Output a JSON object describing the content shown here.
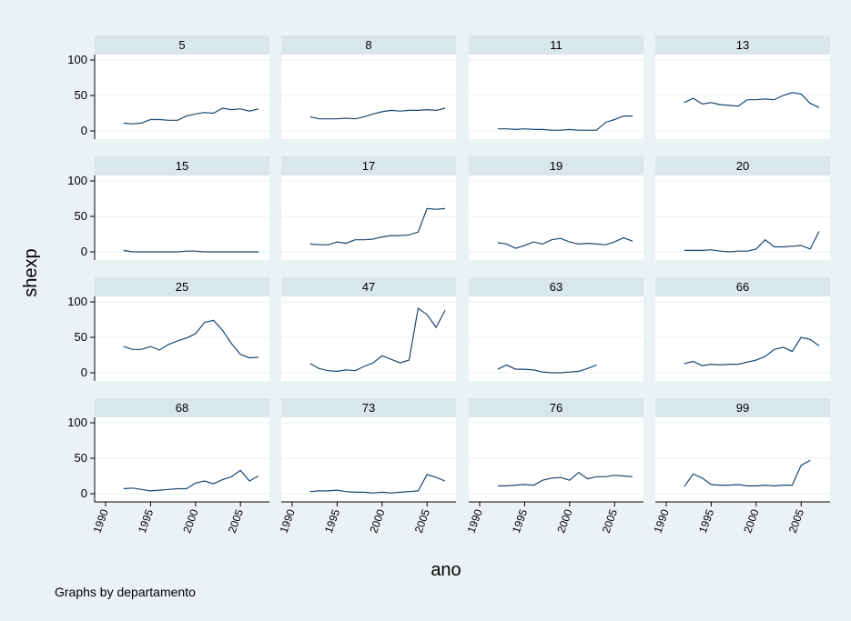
{
  "chart_data": {
    "type": "line",
    "layout": "small-multiples",
    "rows": 4,
    "cols": 4,
    "xlabel": "ano",
    "ylabel": "shexp",
    "note": "Graphs by departamento",
    "xlim": [
      1990,
      2007
    ],
    "ylim": [
      0,
      100
    ],
    "xticks": [
      1990,
      1995,
      2000,
      2005
    ],
    "yticks": [
      0,
      50,
      100
    ],
    "grid": true,
    "line_color": "#1a476f",
    "panels": [
      {
        "name": "5",
        "x": [
          1992,
          1993,
          1994,
          1995,
          1996,
          1997,
          1998,
          1999,
          2000,
          2001,
          2002,
          2003,
          2004,
          2005,
          2006,
          2007
        ],
        "y": [
          11,
          10,
          11,
          16,
          16,
          15,
          15,
          21,
          24,
          26,
          25,
          32,
          30,
          31,
          28,
          31
        ]
      },
      {
        "name": "8",
        "x": [
          1992,
          1993,
          1994,
          1995,
          1996,
          1997,
          1998,
          1999,
          2000,
          2001,
          2002,
          2003,
          2004,
          2005,
          2006,
          2007
        ],
        "y": [
          20,
          17,
          17,
          17,
          18,
          17,
          20,
          24,
          27,
          29,
          28,
          29,
          29,
          30,
          29,
          32
        ]
      },
      {
        "name": "11",
        "x": [
          1992,
          1993,
          1994,
          1995,
          1996,
          1997,
          1998,
          1999,
          2000,
          2001,
          2002,
          2003,
          2004,
          2005,
          2006,
          2007
        ],
        "y": [
          3,
          3,
          2,
          3,
          2,
          2,
          1,
          1,
          2,
          1,
          1,
          1,
          12,
          16,
          21,
          21
        ]
      },
      {
        "name": "13",
        "x": [
          1992,
          1993,
          1994,
          1995,
          1996,
          1997,
          1998,
          1999,
          2000,
          2001,
          2002,
          2003,
          2004,
          2005,
          2006,
          2007
        ],
        "y": [
          40,
          46,
          38,
          40,
          37,
          36,
          35,
          44,
          44,
          45,
          44,
          50,
          54,
          52,
          39,
          33
        ]
      },
      {
        "name": "15",
        "x": [
          1992,
          1993,
          1994,
          1995,
          1996,
          1997,
          1998,
          1999,
          2000,
          2001,
          2002,
          2003,
          2004,
          2005,
          2006,
          2007
        ],
        "y": [
          2,
          0,
          0,
          0,
          0,
          0,
          0,
          1,
          1,
          0,
          0,
          0,
          0,
          0,
          0,
          0
        ]
      },
      {
        "name": "17",
        "x": [
          1992,
          1993,
          1994,
          1995,
          1996,
          1997,
          1998,
          1999,
          2000,
          2001,
          2002,
          2003,
          2004,
          2005,
          2006,
          2007
        ],
        "y": [
          11,
          10,
          10,
          14,
          12,
          17,
          17,
          18,
          21,
          23,
          23,
          24,
          28,
          61,
          60,
          61
        ]
      },
      {
        "name": "19",
        "x": [
          1992,
          1993,
          1994,
          1995,
          1996,
          1997,
          1998,
          1999,
          2000,
          2001,
          2002,
          2003,
          2004,
          2005,
          2006,
          2007
        ],
        "y": [
          13,
          11,
          5,
          9,
          14,
          11,
          17,
          19,
          14,
          11,
          12,
          11,
          10,
          14,
          20,
          15
        ]
      },
      {
        "name": "20",
        "x": [
          1992,
          1993,
          1994,
          1995,
          1996,
          1997,
          1998,
          1999,
          2000,
          2001,
          2002,
          2003,
          2004,
          2005,
          2006,
          2007
        ],
        "y": [
          2,
          2,
          2,
          3,
          1,
          0,
          1,
          1,
          4,
          17,
          7,
          7,
          8,
          9,
          4,
          29
        ]
      },
      {
        "name": "25",
        "x": [
          1992,
          1993,
          1994,
          1995,
          1996,
          1997,
          1998,
          1999,
          2000,
          2001,
          2002,
          2003,
          2004,
          2005,
          2006,
          2007
        ],
        "y": [
          37,
          33,
          33,
          37,
          32,
          40,
          45,
          49,
          55,
          71,
          74,
          60,
          41,
          26,
          21,
          22
        ]
      },
      {
        "name": "47",
        "x": [
          1992,
          1993,
          1994,
          1995,
          1996,
          1997,
          1998,
          1999,
          2000,
          2001,
          2002,
          2003,
          2004,
          2005,
          2006,
          2007
        ],
        "y": [
          13,
          6,
          3,
          2,
          4,
          3,
          9,
          14,
          24,
          19,
          14,
          18,
          91,
          82,
          64,
          88
        ]
      },
      {
        "name": "63",
        "x": [
          1992,
          1993,
          1994,
          1995,
          1996,
          1997,
          1998,
          1999,
          2000,
          2001,
          2002,
          2003
        ],
        "y": [
          5,
          11,
          5,
          5,
          4,
          1,
          0,
          0,
          1,
          2,
          6,
          11
        ]
      },
      {
        "name": "66",
        "x": [
          1992,
          1993,
          1994,
          1995,
          1996,
          1997,
          1998,
          1999,
          2000,
          2001,
          2002,
          2003,
          2004,
          2005,
          2006,
          2007
        ],
        "y": [
          13,
          16,
          10,
          12,
          11,
          12,
          12,
          15,
          18,
          23,
          33,
          36,
          30,
          50,
          47,
          38
        ]
      },
      {
        "name": "68",
        "x": [
          1992,
          1993,
          1994,
          1995,
          1996,
          1997,
          1998,
          1999,
          2000,
          2001,
          2002,
          2003,
          2004,
          2005,
          2006,
          2007
        ],
        "y": [
          7,
          8,
          6,
          4,
          5,
          6,
          7,
          7,
          15,
          18,
          14,
          20,
          24,
          33,
          18,
          25
        ]
      },
      {
        "name": "73",
        "x": [
          1992,
          1993,
          1994,
          1995,
          1996,
          1997,
          1998,
          1999,
          2000,
          2001,
          2002,
          2003,
          2004,
          2005,
          2006,
          2007
        ],
        "y": [
          3,
          4,
          4,
          5,
          3,
          2,
          2,
          1,
          2,
          1,
          2,
          3,
          4,
          27,
          23,
          18
        ]
      },
      {
        "name": "76",
        "x": [
          1992,
          1993,
          1994,
          1995,
          1996,
          1997,
          1998,
          1999,
          2000,
          2001,
          2002,
          2003,
          2004,
          2005,
          2006,
          2007
        ],
        "y": [
          11,
          11,
          12,
          13,
          12,
          19,
          22,
          23,
          19,
          30,
          21,
          24,
          24,
          26,
          25,
          24
        ]
      },
      {
        "name": "99",
        "x": [
          1992,
          1993,
          1994,
          1995,
          1996,
          1997,
          1998,
          1999,
          2000,
          2001,
          2002,
          2003,
          2004,
          2005,
          2006
        ],
        "y": [
          10,
          28,
          22,
          13,
          12,
          12,
          13,
          11,
          11,
          12,
          11,
          12,
          12,
          40,
          47
        ]
      }
    ]
  }
}
